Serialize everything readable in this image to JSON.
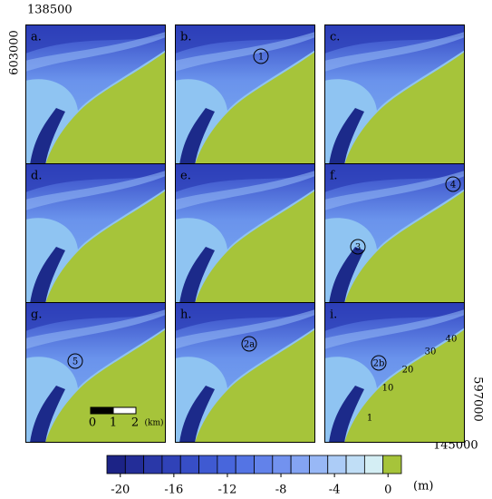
{
  "axes": {
    "x_left": "138500",
    "x_right": "145000",
    "y_top": "603000",
    "y_bottom": "597000"
  },
  "panels": [
    {
      "label": "a.",
      "annotations": []
    },
    {
      "label": "b.",
      "annotations": [
        "1"
      ]
    },
    {
      "label": "c.",
      "annotations": []
    },
    {
      "label": "d.",
      "annotations": []
    },
    {
      "label": "e.",
      "annotations": []
    },
    {
      "label": "f.",
      "annotations": [
        "4",
        "3"
      ]
    },
    {
      "label": "g.",
      "annotations": [
        "5"
      ],
      "scale_bar": [
        "0",
        "1",
        "2",
        "(km)"
      ]
    },
    {
      "label": "h.",
      "annotations": [
        "2a"
      ]
    },
    {
      "label": "i.",
      "annotations": [
        "2b"
      ],
      "contours": [
        "1",
        "10",
        "20",
        "30",
        "40"
      ]
    }
  ],
  "colorbar": {
    "lim": [
      -21,
      1
    ],
    "ticks": [
      -20,
      -16,
      -12,
      -8,
      -4,
      0
    ],
    "unit": "(m)",
    "colors": [
      "#1c2386",
      "#232d98",
      "#2a38a8",
      "#3042b8",
      "#374ec6",
      "#3f5ad2",
      "#4866dc",
      "#5474e4",
      "#6282ea",
      "#7292ef",
      "#84a4f3",
      "#98b8f6",
      "#acccf7",
      "#c0def6",
      "#d4eef4",
      "#a6c43a"
    ]
  }
}
